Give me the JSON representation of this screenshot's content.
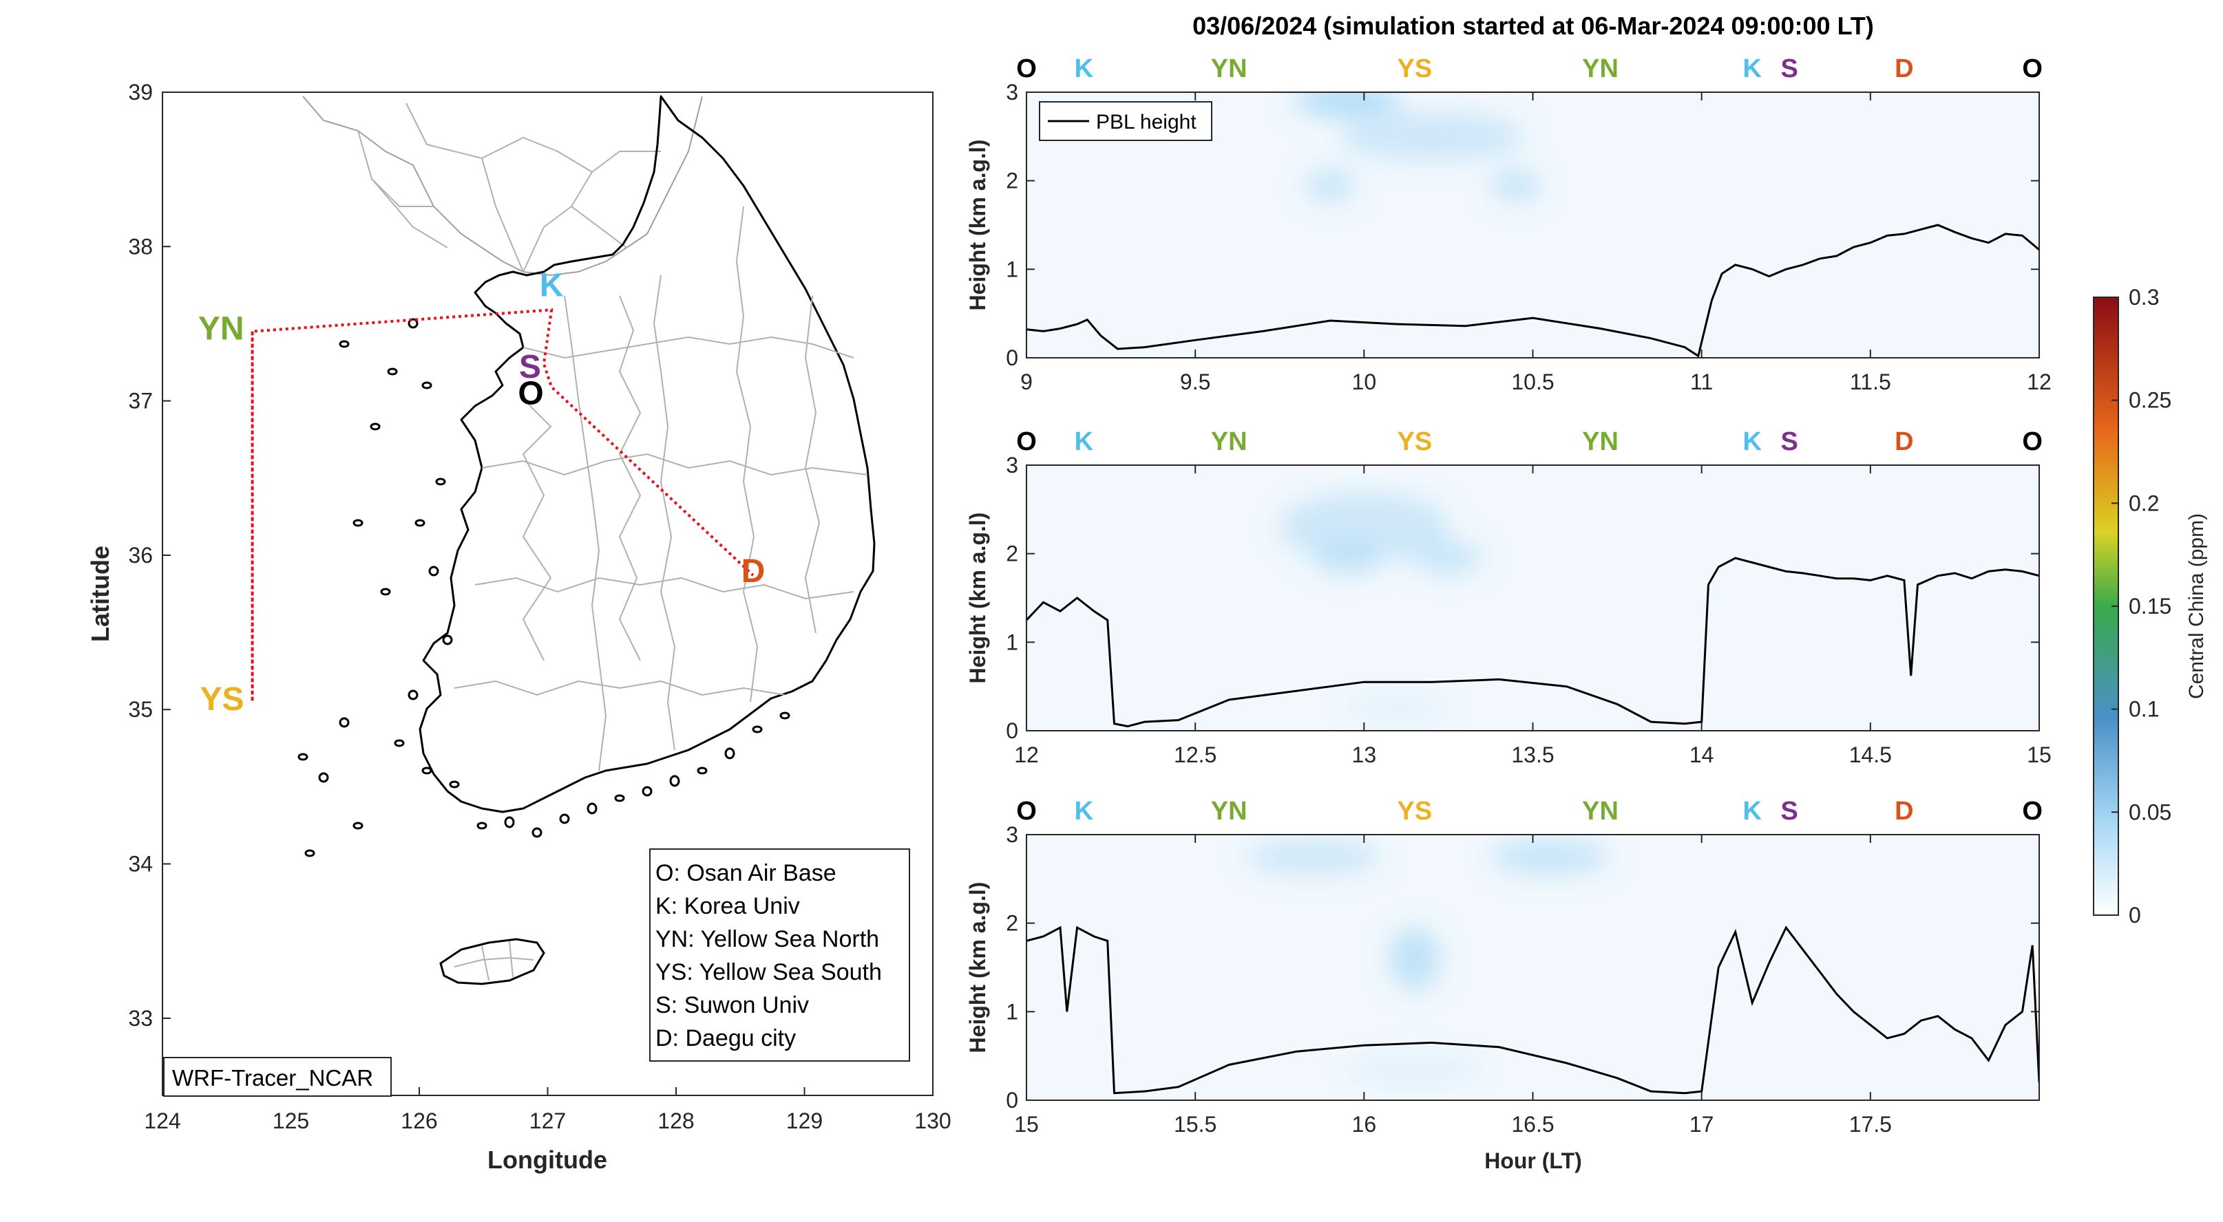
{
  "figure": {
    "title": "03/06/2024 (simulation started at 06-Mar-2024 09:00:00 LT)"
  },
  "colors": {
    "O": "#000000",
    "K": "#4dbeee",
    "YN": "#77ac30",
    "YS": "#edb120",
    "S": "#7e2f8e",
    "D": "#d95319",
    "route": "#e8101a",
    "pbl": "#000000",
    "plume": "#a9d8f5"
  },
  "map": {
    "xlabel": "Longitude",
    "ylabel": "Latitude",
    "xlim": [
      124,
      130
    ],
    "ylim": [
      32.5,
      39
    ],
    "xticks": [
      "124",
      "125",
      "126",
      "127",
      "128",
      "129",
      "130"
    ],
    "yticks": [
      "33",
      "34",
      "35",
      "36",
      "37",
      "38",
      "39"
    ],
    "model_label": "WRF-Tracer_NCAR",
    "legend": [
      "O: Osan Air Base",
      "K: Korea Univ",
      "YN: Yellow Sea North",
      "YS: Yellow Sea South",
      "S: Suwon Univ",
      "D: Daegu city"
    ],
    "sites": [
      {
        "code": "YN",
        "lon": 124.7,
        "lat": 37.45
      },
      {
        "code": "YS",
        "lon": 124.7,
        "lat": 35.05
      },
      {
        "code": "K",
        "lon": 127.03,
        "lat": 37.59
      },
      {
        "code": "S",
        "lon": 126.97,
        "lat": 37.24
      },
      {
        "code": "O",
        "lon": 127.03,
        "lat": 37.09
      },
      {
        "code": "D",
        "lon": 128.6,
        "lat": 35.87
      }
    ],
    "route_order": [
      "YN",
      "YS",
      "YN",
      "K",
      "S",
      "O",
      "D"
    ]
  },
  "chart_data": {
    "type": "line",
    "colorbar": {
      "label": "Central China (ppm)",
      "range": [
        0,
        0.3
      ],
      "ticks": [
        "0",
        "0.05",
        "0.1",
        "0.15",
        "0.2",
        "0.25",
        "0.3"
      ]
    },
    "ylabel": "Height (km a.g.l)",
    "xlabel": "Hour (LT)",
    "legend": "PBL height",
    "panels": [
      {
        "xlim": [
          9,
          12
        ],
        "ylim": [
          0,
          3
        ],
        "xticks": [
          "9",
          "9.5",
          "10",
          "10.5",
          "11",
          "11.5",
          "12"
        ],
        "yticks": [
          "0",
          "1",
          "2",
          "3"
        ],
        "sites": [
          {
            "code": "O",
            "x": 9.0
          },
          {
            "code": "K",
            "x": 9.17
          },
          {
            "code": "YN",
            "x": 9.6
          },
          {
            "code": "YS",
            "x": 10.15
          },
          {
            "code": "YN",
            "x": 10.7
          },
          {
            "code": "K",
            "x": 11.15
          },
          {
            "code": "S",
            "x": 11.26
          },
          {
            "code": "D",
            "x": 11.6
          },
          {
            "code": "O",
            "x": 11.98
          }
        ],
        "pbl_x": [
          9.0,
          9.05,
          9.1,
          9.15,
          9.18,
          9.22,
          9.27,
          9.35,
          9.5,
          9.7,
          9.9,
          10.1,
          10.3,
          10.5,
          10.7,
          10.85,
          10.95,
          10.99,
          11.03,
          11.06,
          11.1,
          11.15,
          11.2,
          11.25,
          11.3,
          11.35,
          11.4,
          11.45,
          11.5,
          11.55,
          11.6,
          11.65,
          11.7,
          11.75,
          11.8,
          11.85,
          11.9,
          11.95,
          12.0
        ],
        "pbl_y": [
          0.32,
          0.3,
          0.33,
          0.38,
          0.43,
          0.25,
          0.1,
          0.12,
          0.2,
          0.3,
          0.42,
          0.38,
          0.36,
          0.45,
          0.33,
          0.22,
          0.12,
          0.02,
          0.65,
          0.95,
          1.05,
          1.0,
          0.92,
          1.0,
          1.05,
          1.12,
          1.15,
          1.25,
          1.3,
          1.38,
          1.4,
          1.45,
          1.5,
          1.42,
          1.35,
          1.3,
          1.4,
          1.38,
          1.22
        ],
        "plumes": [
          {
            "x": 9.95,
            "y": 2.9,
            "w": 0.32,
            "h": 0.3,
            "v": 0.05
          },
          {
            "x": 10.2,
            "y": 2.5,
            "w": 0.55,
            "h": 0.55,
            "v": 0.025
          },
          {
            "x": 9.9,
            "y": 1.95,
            "w": 0.15,
            "h": 0.35,
            "v": 0.03
          },
          {
            "x": 10.45,
            "y": 1.95,
            "w": 0.15,
            "h": 0.35,
            "v": 0.03
          }
        ]
      },
      {
        "xlim": [
          12,
          15
        ],
        "ylim": [
          0,
          3
        ],
        "xticks": [
          "12",
          "12.5",
          "13",
          "13.5",
          "14",
          "14.5",
          "15"
        ],
        "yticks": [
          "0",
          "1",
          "2",
          "3"
        ],
        "sites": [
          {
            "code": "O",
            "x": 12.0
          },
          {
            "code": "K",
            "x": 12.17
          },
          {
            "code": "YN",
            "x": 12.6
          },
          {
            "code": "YS",
            "x": 13.15
          },
          {
            "code": "YN",
            "x": 13.7
          },
          {
            "code": "K",
            "x": 14.15
          },
          {
            "code": "S",
            "x": 14.26
          },
          {
            "code": "D",
            "x": 14.6
          },
          {
            "code": "O",
            "x": 14.98
          }
        ],
        "pbl_x": [
          12.0,
          12.05,
          12.1,
          12.15,
          12.2,
          12.24,
          12.26,
          12.3,
          12.35,
          12.45,
          12.6,
          12.8,
          13.0,
          13.2,
          13.4,
          13.6,
          13.75,
          13.85,
          13.95,
          14.0,
          14.02,
          14.05,
          14.1,
          14.15,
          14.2,
          14.25,
          14.3,
          14.35,
          14.4,
          14.45,
          14.5,
          14.55,
          14.6,
          14.62,
          14.64,
          14.67,
          14.7,
          14.75,
          14.8,
          14.85,
          14.9,
          14.95,
          15.0
        ],
        "pbl_y": [
          1.25,
          1.45,
          1.35,
          1.5,
          1.35,
          1.25,
          0.08,
          0.05,
          0.1,
          0.12,
          0.35,
          0.45,
          0.55,
          0.55,
          0.58,
          0.5,
          0.3,
          0.1,
          0.08,
          0.1,
          1.65,
          1.85,
          1.95,
          1.9,
          1.85,
          1.8,
          1.78,
          1.75,
          1.72,
          1.72,
          1.7,
          1.75,
          1.7,
          0.62,
          1.65,
          1.7,
          1.75,
          1.78,
          1.72,
          1.8,
          1.82,
          1.8,
          1.75
        ],
        "plumes": [
          {
            "x": 13.0,
            "y": 2.3,
            "w": 0.5,
            "h": 0.8,
            "v": 0.025
          },
          {
            "x": 12.95,
            "y": 1.95,
            "w": 0.2,
            "h": 0.35,
            "v": 0.03
          },
          {
            "x": 13.25,
            "y": 1.95,
            "w": 0.2,
            "h": 0.35,
            "v": 0.03
          },
          {
            "x": 13.1,
            "y": 0.25,
            "w": 0.3,
            "h": 0.25,
            "v": 0.012
          }
        ]
      },
      {
        "xlim": [
          15,
          18
        ],
        "ylim": [
          0,
          3
        ],
        "xticks": [
          "15",
          "15.5",
          "16",
          "16.5",
          "17",
          "17.5"
        ],
        "yticks": [
          "0",
          "1",
          "2",
          "3"
        ],
        "sites": [
          {
            "code": "O",
            "x": 15.0
          },
          {
            "code": "K",
            "x": 15.17
          },
          {
            "code": "YN",
            "x": 15.6
          },
          {
            "code": "YS",
            "x": 16.15
          },
          {
            "code": "YN",
            "x": 16.7
          },
          {
            "code": "K",
            "x": 17.15
          },
          {
            "code": "S",
            "x": 17.26
          },
          {
            "code": "D",
            "x": 17.6
          },
          {
            "code": "O",
            "x": 17.98
          }
        ],
        "pbl_x": [
          15.0,
          15.05,
          15.1,
          15.12,
          15.15,
          15.2,
          15.24,
          15.26,
          15.35,
          15.45,
          15.6,
          15.8,
          16.0,
          16.2,
          16.4,
          16.6,
          16.75,
          16.85,
          16.95,
          17.0,
          17.05,
          17.1,
          17.15,
          17.2,
          17.25,
          17.3,
          17.35,
          17.4,
          17.45,
          17.5,
          17.55,
          17.6,
          17.65,
          17.7,
          17.75,
          17.8,
          17.85,
          17.9,
          17.95,
          17.98,
          18.0
        ],
        "pbl_y": [
          1.8,
          1.85,
          1.95,
          1.0,
          1.95,
          1.85,
          1.8,
          0.08,
          0.1,
          0.15,
          0.4,
          0.55,
          0.62,
          0.65,
          0.6,
          0.42,
          0.25,
          0.1,
          0.08,
          0.1,
          1.5,
          1.9,
          1.1,
          1.55,
          1.95,
          1.7,
          1.45,
          1.2,
          1.0,
          0.85,
          0.7,
          0.75,
          0.9,
          0.95,
          0.8,
          0.7,
          0.45,
          0.85,
          1.0,
          1.75,
          0.2
        ],
        "plumes": [
          {
            "x": 15.85,
            "y": 2.75,
            "w": 0.4,
            "h": 0.4,
            "v": 0.025
          },
          {
            "x": 16.55,
            "y": 2.75,
            "w": 0.35,
            "h": 0.4,
            "v": 0.03
          },
          {
            "x": 16.15,
            "y": 1.6,
            "w": 0.15,
            "h": 0.7,
            "v": 0.035
          },
          {
            "x": 16.15,
            "y": 0.35,
            "w": 0.4,
            "h": 0.3,
            "v": 0.012
          }
        ]
      }
    ]
  }
}
